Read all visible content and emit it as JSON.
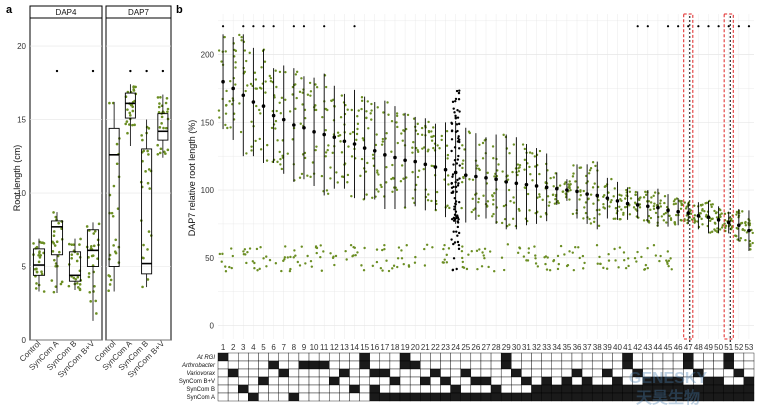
{
  "panel_labels": {
    "a": "a",
    "b": "b"
  },
  "watermark": {
    "en": "GENESKY",
    "cn": "天昊生物"
  },
  "colors": {
    "point_green": "#6b8e23",
    "point_black": "#000000",
    "highlight_red": "#e02020",
    "grid": "#e6e6e6",
    "cell_on": "#1a1a1a"
  },
  "chart_data": [
    {
      "type": "box",
      "panel": "a",
      "ylabel": "Root length (cm)",
      "ylim": [
        0,
        21.5
      ],
      "yticks": [
        0,
        5,
        10,
        15,
        20
      ],
      "facets": [
        {
          "name": "DAP4",
          "categories": [
            "Control",
            "SynCom A",
            "SynCom B",
            "SynCom B+V"
          ],
          "boxes": [
            {
              "q1": 4.4,
              "median": 5.1,
              "q3": 6.2,
              "whisker_low": 3.3,
              "whisker_high": 6.9,
              "sig": false
            },
            {
              "q1": 5.8,
              "median": 7.7,
              "q3": 8.1,
              "whisker_low": 3.2,
              "whisker_high": 8.7,
              "sig": true
            },
            {
              "q1": 4.0,
              "median": 4.4,
              "q3": 6.0,
              "whisker_low": 3.4,
              "whisker_high": 6.9,
              "sig": false
            },
            {
              "q1": 5.0,
              "median": 6.1,
              "q3": 7.5,
              "whisker_low": 1.3,
              "whisker_high": 8.0,
              "sig": true
            }
          ]
        },
        {
          "name": "DAP7",
          "categories": [
            "Control",
            "SynCom A",
            "SynCom B",
            "SynCom B+V"
          ],
          "boxes": [
            {
              "q1": 5.0,
              "median": 12.6,
              "q3": 14.4,
              "whisker_low": 3.3,
              "whisker_high": 16.2,
              "sig": false
            },
            {
              "q1": 15.1,
              "median": 16.1,
              "q3": 16.8,
              "whisker_low": 13.2,
              "whisker_high": 17.4,
              "sig": true
            },
            {
              "q1": 4.5,
              "median": 5.2,
              "q3": 13.0,
              "whisker_low": 3.6,
              "whisker_high": 15.0,
              "sig": true
            },
            {
              "q1": 13.6,
              "median": 14.2,
              "q3": 15.4,
              "whisker_low": 12.4,
              "whisker_high": 16.7,
              "sig": true
            }
          ]
        }
      ]
    },
    {
      "type": "pointrange",
      "panel": "b",
      "ylabel": "DAP7 relative root length (%)",
      "ylim": [
        -10,
        230
      ],
      "yticks": [
        0,
        50,
        100,
        150,
        200
      ],
      "categories": [
        "1",
        "2",
        "3",
        "4",
        "5",
        "6",
        "7",
        "8",
        "9",
        "10",
        "11",
        "12",
        "13",
        "14",
        "15",
        "16",
        "17",
        "18",
        "19",
        "20",
        "21",
        "22",
        "23",
        "24",
        "25",
        "26",
        "27",
        "28",
        "29",
        "30",
        "31",
        "32",
        "33",
        "34",
        "35",
        "36",
        "37",
        "38",
        "39",
        "40",
        "41",
        "42",
        "43",
        "44",
        "45",
        "46",
        "47",
        "48",
        "49",
        "50",
        "51",
        "52",
        "53"
      ],
      "mean": [
        180,
        175,
        170,
        165,
        162,
        155,
        152,
        148,
        146,
        143,
        141,
        139,
        136,
        134,
        131,
        129,
        126,
        124,
        122,
        121,
        119,
        117,
        115,
        113,
        111,
        110,
        109,
        108,
        106,
        105,
        104,
        103,
        102,
        101,
        100,
        99,
        97,
        96,
        94,
        92,
        90,
        89,
        88,
        87,
        85,
        84,
        83,
        81,
        80,
        78,
        76,
        74,
        70
      ],
      "sd": [
        35,
        38,
        45,
        40,
        42,
        35,
        40,
        42,
        38,
        40,
        45,
        38,
        35,
        40,
        38,
        36,
        40,
        38,
        35,
        33,
        34,
        32,
        35,
        38,
        35,
        32,
        30,
        33,
        35,
        34,
        30,
        28,
        25,
        12,
        8,
        20,
        22,
        25,
        15,
        14,
        12,
        10,
        12,
        14,
        12,
        10,
        8,
        10,
        12,
        10,
        8,
        12,
        15
      ],
      "significant_top": [
        1,
        3,
        4,
        5,
        6,
        8,
        9,
        11,
        14,
        42,
        43,
        45,
        46,
        47,
        48,
        49,
        50,
        51,
        52,
        53
      ],
      "black_category": "24",
      "highlighted": [
        "47",
        "51"
      ],
      "composition_rows": [
        {
          "name": "At RGI",
          "present": [
            1,
            15,
            19,
            29,
            41,
            47,
            51
          ]
        },
        {
          "name": "Arthrobacter",
          "present": [
            6,
            9,
            10,
            11,
            15,
            19,
            20,
            29,
            41,
            47,
            51
          ]
        },
        {
          "name": "Variovorax",
          "present": [
            2,
            7,
            13,
            16,
            17,
            22,
            25,
            30,
            36,
            39,
            42,
            48,
            52
          ]
        },
        {
          "name": "SynCom B+V",
          "present": [
            5,
            12,
            18,
            21,
            23,
            26,
            27,
            31,
            33,
            35,
            37,
            40,
            43,
            44,
            45,
            46,
            49,
            50,
            53
          ]
        },
        {
          "name": "SynCom B",
          "present": [
            3,
            14,
            16,
            24,
            28,
            32,
            33,
            34,
            35,
            36,
            37,
            38,
            39,
            40,
            41,
            42,
            43,
            44,
            45,
            46,
            47,
            48,
            49,
            50,
            51,
            52,
            53
          ]
        },
        {
          "name": "SynCom A",
          "present": [
            4,
            8,
            16,
            17,
            18,
            19,
            20,
            21,
            22,
            23,
            24,
            25,
            26,
            27,
            28,
            29,
            30,
            31,
            32,
            33,
            34,
            35,
            36,
            37,
            38,
            39,
            40,
            41,
            42,
            43,
            44,
            45,
            46,
            47,
            48,
            49,
            50,
            51,
            52,
            53
          ]
        }
      ]
    }
  ]
}
